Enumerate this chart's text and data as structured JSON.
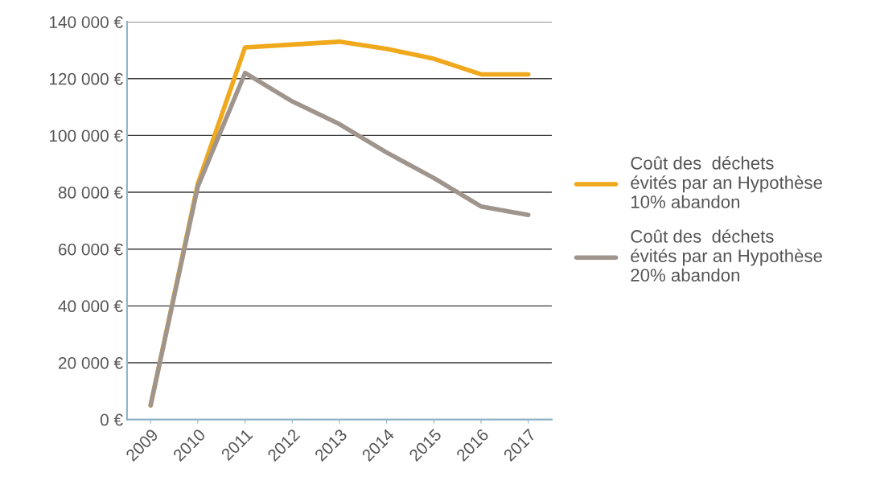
{
  "chart_data": {
    "type": "line",
    "categories": [
      "2009",
      "2010",
      "2011",
      "2012",
      "2013",
      "2014",
      "2015",
      "2016",
      "2017"
    ],
    "series": [
      {
        "name": "Coût des  déchets\névités par an Hypothèse\n10% abandon",
        "color": "#f0a81c",
        "values": [
          5000,
          83000,
          131000,
          132000,
          133000,
          130500,
          127000,
          121500,
          121500
        ]
      },
      {
        "name": "Coût des  déchets\névités par an Hypothèse\n20% abandon",
        "color": "#a0958d",
        "values": [
          5000,
          82000,
          122000,
          112000,
          104000,
          94000,
          85000,
          75000,
          72000
        ]
      }
    ],
    "ylim": [
      0,
      140000
    ],
    "yticks": [
      {
        "value": 0,
        "label": "0 €"
      },
      {
        "value": 20000,
        "label": "20 000 €"
      },
      {
        "value": 40000,
        "label": "40 000 €"
      },
      {
        "value": 60000,
        "label": "60 000 €"
      },
      {
        "value": 80000,
        "label": "80 000 €"
      },
      {
        "value": 100000,
        "label": "100 000 €"
      },
      {
        "value": 120000,
        "label": "120 000 €"
      },
      {
        "value": 140000,
        "label": "140 000 €"
      }
    ],
    "grid": "y",
    "legend": "right",
    "marker": "none",
    "line_style": "solid"
  }
}
